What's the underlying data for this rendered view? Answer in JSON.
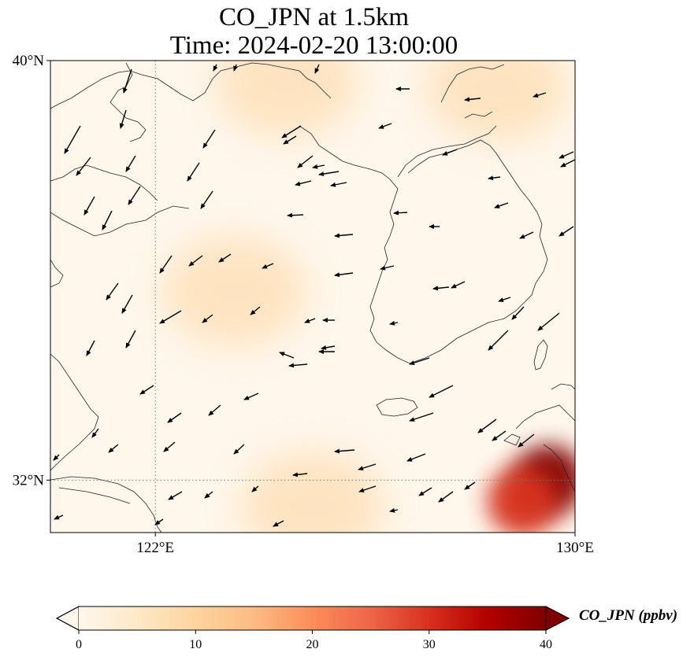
{
  "title_line1": "CO_JPN at 1.5km",
  "title_line2": "Time: 2024-02-20 13:00:00",
  "map": {
    "lon_range": [
      120,
      130
    ],
    "lat_range": [
      31,
      40
    ],
    "lat_ticks": [
      {
        "value": 40,
        "label": "40°N"
      },
      {
        "value": 32,
        "label": "32°N"
      }
    ],
    "lon_ticks": [
      {
        "value": 122,
        "label": "122°E"
      },
      {
        "value": 130,
        "label": "130°E"
      }
    ],
    "gridlines": {
      "lon": 122,
      "lat": 32,
      "style": "dotted"
    },
    "colormap": "OrRd",
    "field_hotspots": [
      {
        "lon": 123.5,
        "lat": 35.6,
        "ppbv": 12
      },
      {
        "lon": 125.0,
        "lat": 31.5,
        "ppbv": 11
      },
      {
        "lon": 124.5,
        "lat": 39.6,
        "ppbv": 9
      },
      {
        "lon": 128.5,
        "lat": 39.5,
        "ppbv": 11
      },
      {
        "lon": 129.5,
        "lat": 32.0,
        "ppbv": 40
      },
      {
        "lon": 129.0,
        "lat": 31.6,
        "ppbv": 28
      }
    ],
    "wind_vectors_note": "northwesterly to easterly winds"
  },
  "colorbar": {
    "label": "CO_JPN (ppbv)",
    "min": 0,
    "max": 40,
    "ticks": [
      0,
      10,
      20,
      30,
      40
    ],
    "extend": "both",
    "colors": [
      "#fff7ec",
      "#fee8c8",
      "#fdd49e",
      "#fdbb84",
      "#fc8d59",
      "#ef6548",
      "#d7301f",
      "#b30000",
      "#7f0000"
    ]
  }
}
